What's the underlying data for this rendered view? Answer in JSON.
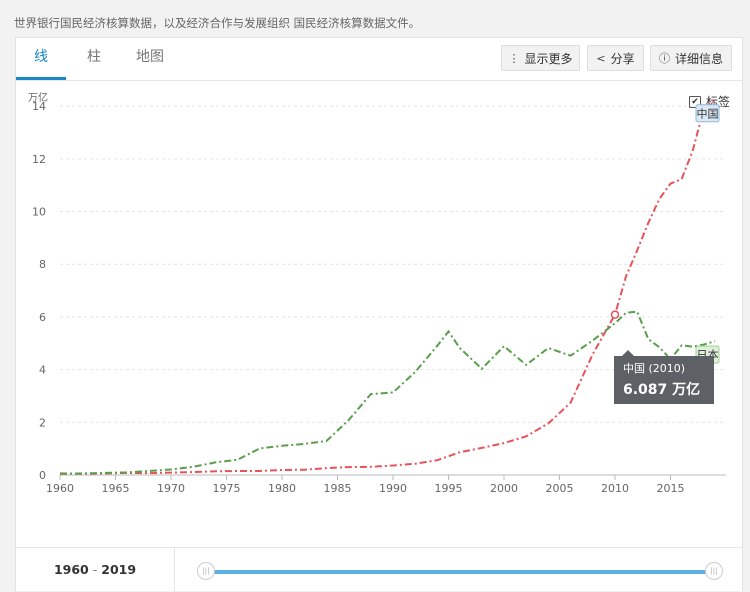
{
  "source_text": "世界银行国民经济核算数据，以及经济合作与发展组织 国民经济核算数据文件。",
  "tabs": [
    {
      "label": "线"
    },
    {
      "label": "柱"
    },
    {
      "label": "地图"
    }
  ],
  "toolbar": {
    "more_label": "显示更多",
    "more_icon": "vertical-ellipsis-icon",
    "share_label": "分享",
    "share_icon": "share-icon",
    "details_label": "详细信息",
    "details_icon": "info-icon"
  },
  "labels_toggle": {
    "label": "标签",
    "checked": true
  },
  "range": {
    "start": "1960",
    "end": "2019"
  },
  "tooltip": {
    "title": "中国 (2010)",
    "value": "6.087 万亿"
  },
  "colors": {
    "china": "#e8525a",
    "japan": "#5a9e4d",
    "accent": "#1a87c9"
  },
  "chart_data": {
    "type": "line",
    "ylabel": "万亿",
    "ylim": [
      0,
      14.5
    ],
    "yticks": [
      0,
      2,
      4,
      6,
      8,
      10,
      12,
      14
    ],
    "xlim": [
      1960,
      2020
    ],
    "xticks": [
      1960,
      1965,
      1970,
      1975,
      1980,
      1985,
      1990,
      1995,
      2000,
      2005,
      2010,
      2015
    ],
    "grid": true,
    "series": [
      {
        "name": "中国",
        "color": "#e8525a",
        "x": [
          1960,
          1962,
          1964,
          1966,
          1968,
          1970,
          1972,
          1974,
          1976,
          1978,
          1980,
          1982,
          1984,
          1986,
          1988,
          1990,
          1992,
          1994,
          1996,
          1998,
          2000,
          2002,
          2004,
          2006,
          2008,
          2010,
          2011,
          2012,
          2013,
          2014,
          2015,
          2016,
          2017,
          2018,
          2019
        ],
        "y": [
          0.06,
          0.05,
          0.06,
          0.08,
          0.07,
          0.09,
          0.11,
          0.14,
          0.15,
          0.15,
          0.19,
          0.2,
          0.26,
          0.3,
          0.31,
          0.36,
          0.43,
          0.56,
          0.86,
          1.03,
          1.21,
          1.47,
          1.96,
          2.75,
          4.59,
          6.087,
          7.55,
          8.53,
          9.57,
          10.48,
          11.06,
          11.23,
          12.31,
          13.89,
          14.28
        ]
      },
      {
        "name": "日本",
        "color": "#5a9e4d",
        "x": [
          1960,
          1962,
          1964,
          1966,
          1968,
          1970,
          1972,
          1974,
          1976,
          1978,
          1980,
          1982,
          1984,
          1986,
          1988,
          1990,
          1992,
          1994,
          1995,
          1996,
          1998,
          2000,
          2002,
          2004,
          2006,
          2008,
          2010,
          2011,
          2012,
          2013,
          2014,
          2015,
          2016,
          2017,
          2018,
          2019
        ],
        "y": [
          0.04,
          0.06,
          0.08,
          0.1,
          0.15,
          0.21,
          0.31,
          0.48,
          0.58,
          1.01,
          1.11,
          1.18,
          1.29,
          2.08,
          3.07,
          3.13,
          3.91,
          4.91,
          5.45,
          4.83,
          4.03,
          4.89,
          4.18,
          4.82,
          4.53,
          5.11,
          5.76,
          6.16,
          6.2,
          5.16,
          4.85,
          4.39,
          4.92,
          4.87,
          4.95,
          5.08
        ]
      }
    ],
    "end_labels": [
      {
        "series": "中国",
        "text": "中国"
      },
      {
        "series": "日本",
        "text": "日本"
      }
    ],
    "highlight": {
      "series": "中国",
      "x": 2010,
      "y": 6.087
    }
  }
}
